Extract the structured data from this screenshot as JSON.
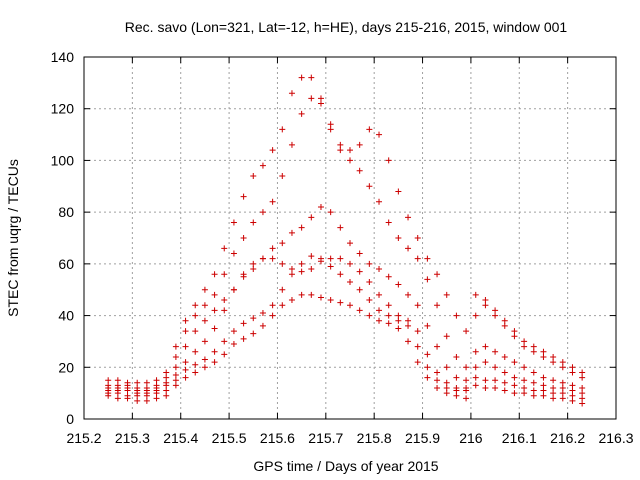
{
  "chart_data": {
    "type": "scatter",
    "title": "Rec. savo (Lon=321, Lat=-12, h=HE), days 215-216, 2015, window 001",
    "xlabel": "GPS time / Days of year 2015",
    "ylabel": "STEC from uqrg / TECUs",
    "xlim": [
      215.2,
      216.3
    ],
    "ylim": [
      0,
      140
    ],
    "xticks": [
      215.2,
      215.3,
      215.4,
      215.5,
      215.6,
      215.7,
      215.8,
      215.9,
      216,
      216.1,
      216.2,
      216.3
    ],
    "xtick_labels": [
      "215.2",
      "215.3",
      "215.4",
      "215.5",
      "215.6",
      "215.7",
      "215.8",
      "215.9",
      "216",
      "216.1",
      "216.2",
      "216.3"
    ],
    "yticks": [
      0,
      20,
      40,
      60,
      80,
      100,
      120,
      140
    ],
    "ytick_labels": [
      "0",
      "20",
      "40",
      "60",
      "80",
      "100",
      "120",
      "140"
    ],
    "grid": true,
    "marker": "+",
    "color": "#cc0000",
    "series": [
      {
        "x": [
          215.25,
          215.27,
          215.29,
          215.31,
          215.33,
          215.35,
          215.37,
          215.39,
          215.41,
          215.43,
          215.45,
          215.47,
          215.49,
          215.51,
          215.53,
          215.55,
          215.57,
          215.59,
          215.61,
          215.63,
          215.65,
          215.67,
          215.69,
          215.71,
          215.73,
          215.75,
          215.77,
          215.79,
          215.81,
          215.83,
          215.85,
          215.87,
          215.89,
          215.91,
          215.93,
          215.95,
          215.97,
          215.99,
          216.01,
          216.03,
          216.05,
          216.07,
          216.09,
          216.11,
          216.13,
          216.15,
          216.17,
          216.19,
          216.21,
          216.23
        ],
        "y": [
          9,
          8,
          8,
          7,
          7,
          8,
          9,
          13,
          16,
          18,
          20,
          22,
          25,
          29,
          31,
          33,
          36,
          40,
          44,
          46,
          48,
          48,
          47,
          46,
          45,
          44,
          42,
          40,
          38,
          37,
          35,
          30,
          22,
          16,
          12,
          10,
          9,
          8,
          13,
          12,
          12,
          11,
          10,
          10,
          9,
          9,
          8,
          8,
          7,
          6
        ]
      },
      {
        "x": [
          215.25,
          215.27,
          215.29,
          215.31,
          215.33,
          215.35,
          215.37,
          215.39,
          215.41,
          215.43,
          215.45,
          215.47,
          215.49,
          215.51,
          215.53,
          215.55,
          215.57,
          215.59,
          215.61,
          215.63,
          215.65,
          215.67,
          215.69,
          215.71,
          215.73,
          215.75,
          215.77,
          215.79,
          215.81,
          215.83,
          215.85,
          215.87,
          215.89,
          215.91,
          215.93,
          215.95,
          215.97,
          215.99,
          216.01,
          216.03,
          216.05,
          216.07,
          216.09,
          216.11,
          216.13,
          216.15,
          216.17,
          216.19,
          216.21,
          216.23
        ],
        "y": [
          10,
          10,
          9,
          9,
          9,
          10,
          11,
          15,
          19,
          21,
          23,
          26,
          30,
          34,
          37,
          39,
          41,
          44,
          50,
          56,
          60,
          63,
          62,
          59,
          56,
          53,
          50,
          46,
          42,
          40,
          38,
          36,
          28,
          20,
          15,
          12,
          11,
          11,
          16,
          15,
          15,
          14,
          13,
          12,
          11,
          11,
          10,
          10,
          9,
          8
        ]
      },
      {
        "x": [
          215.25,
          215.27,
          215.29,
          215.31,
          215.33,
          215.35,
          215.37,
          215.39,
          215.41,
          215.43,
          215.45,
          215.47,
          215.49,
          215.51,
          215.53,
          215.55,
          215.57,
          215.59,
          215.61,
          215.63,
          215.65,
          215.67,
          215.69,
          215.71,
          215.73,
          215.75,
          215.77,
          215.79,
          215.81,
          215.83,
          215.85,
          215.87,
          215.89,
          215.91,
          215.93,
          215.95,
          215.97,
          215.99,
          216.01,
          216.03,
          216.05,
          216.07,
          216.09,
          216.11,
          216.13,
          216.15,
          216.17,
          216.19,
          216.21,
          216.23
        ],
        "y": [
          11,
          11,
          11,
          10,
          10,
          11,
          13,
          17,
          22,
          26,
          30,
          35,
          42,
          50,
          56,
          60,
          62,
          62,
          60,
          58,
          57,
          58,
          61,
          62,
          62,
          60,
          57,
          53,
          48,
          44,
          40,
          38,
          34,
          25,
          18,
          14,
          12,
          12,
          20,
          22,
          20,
          18,
          16,
          15,
          14,
          13,
          12,
          12,
          11,
          10
        ]
      },
      {
        "x": [
          215.25,
          215.27,
          215.29,
          215.31,
          215.33,
          215.35,
          215.37,
          215.39,
          215.41,
          215.43,
          215.45,
          215.47,
          215.49,
          215.51,
          215.53,
          215.55,
          215.57,
          215.59,
          215.61,
          215.63,
          215.65,
          215.67,
          215.69,
          215.71,
          215.73,
          215.75,
          215.77,
          215.79,
          215.81,
          215.83,
          215.85,
          215.87,
          215.89,
          215.91,
          215.93,
          215.95,
          215.97,
          215.99,
          216.01,
          216.03,
          216.05,
          216.07,
          216.09,
          216.11,
          216.13,
          216.15,
          216.17,
          216.19,
          216.21,
          216.23
        ],
        "y": [
          12,
          12,
          12,
          11,
          11,
          12,
          14,
          20,
          28,
          34,
          38,
          42,
          46,
          50,
          55,
          58,
          62,
          66,
          68,
          72,
          74,
          78,
          82,
          80,
          74,
          68,
          64,
          60,
          58,
          55,
          52,
          48,
          44,
          36,
          28,
          20,
          16,
          15,
          26,
          28,
          26,
          24,
          22,
          20,
          18,
          16,
          15,
          14,
          13,
          12
        ]
      },
      {
        "x": [
          215.25,
          215.27,
          215.29,
          215.31,
          215.33,
          215.35,
          215.37,
          215.39,
          215.41,
          215.43,
          215.45,
          215.47,
          215.49,
          215.51,
          215.53,
          215.55,
          215.57,
          215.59,
          215.61,
          215.63,
          215.65,
          215.67,
          215.69,
          215.71,
          215.73,
          215.75,
          215.77,
          215.79,
          215.81,
          215.83,
          215.85,
          215.87,
          215.89,
          215.91,
          215.93,
          215.95,
          215.97,
          215.99,
          216.01,
          216.03,
          216.05,
          216.07,
          216.09,
          216.11,
          216.13,
          216.15,
          216.17,
          216.19,
          216.21,
          216.23
        ],
        "y": [
          13,
          13,
          13,
          12,
          12,
          13,
          16,
          24,
          34,
          40,
          44,
          48,
          56,
          64,
          70,
          76,
          80,
          84,
          94,
          106,
          118,
          124,
          122,
          112,
          104,
          100,
          96,
          90,
          84,
          76,
          70,
          66,
          62,
          54,
          44,
          32,
          24,
          20,
          40,
          44,
          40,
          36,
          32,
          28,
          26,
          24,
          22,
          20,
          18,
          16
        ]
      },
      {
        "x": [
          215.25,
          215.27,
          215.29,
          215.31,
          215.33,
          215.35,
          215.37,
          215.39,
          215.41,
          215.43,
          215.45,
          215.47,
          215.49,
          215.51,
          215.53,
          215.55,
          215.57,
          215.59,
          215.61,
          215.63,
          215.65,
          215.67,
          215.69,
          215.71,
          215.73,
          215.75,
          215.77,
          215.79,
          215.81,
          215.83,
          215.85,
          215.87,
          215.89,
          215.91,
          215.93,
          215.95,
          215.97,
          215.99,
          216.01,
          216.03,
          216.05,
          216.07,
          216.09,
          216.11,
          216.13,
          216.15,
          216.17,
          216.19,
          216.21,
          216.23
        ],
        "y": [
          15,
          15,
          14,
          14,
          14,
          15,
          18,
          28,
          38,
          44,
          50,
          56,
          66,
          76,
          86,
          94,
          98,
          104,
          112,
          126,
          132,
          132,
          124,
          114,
          106,
          104,
          106,
          112,
          110,
          100,
          88,
          78,
          70,
          62,
          56,
          48,
          40,
          34,
          48,
          46,
          42,
          38,
          34,
          30,
          28,
          26,
          24,
          22,
          20,
          18
        ]
      }
    ]
  }
}
